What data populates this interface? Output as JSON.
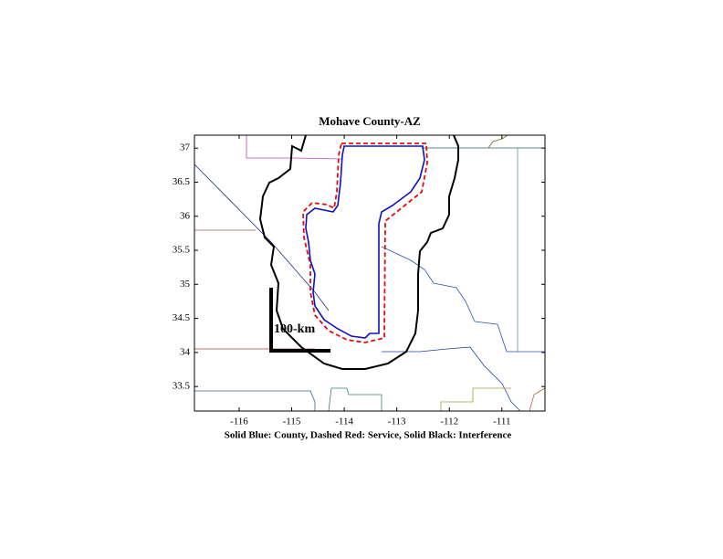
{
  "chart_data": {
    "type": "map",
    "title": "Mohave County-AZ",
    "xlabel": "Solid Blue: County, Dashed Red: Service, Solid Black: Interference",
    "annotation": "100-km",
    "xlim": [
      -116.85,
      -110.18
    ],
    "ylim": [
      33.14,
      37.19
    ],
    "xticks": [
      -116,
      -115,
      -114,
      -113,
      -112,
      -111
    ],
    "yticks": [
      33.5,
      34,
      34.5,
      35,
      35.5,
      36,
      36.5,
      37
    ]
  }
}
